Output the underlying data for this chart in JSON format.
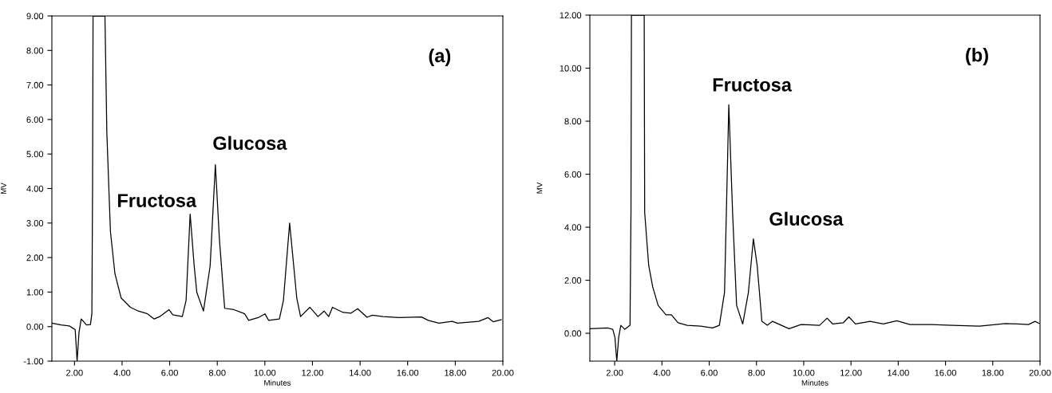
{
  "chart_data": [
    {
      "type": "line",
      "xlabel": "Minutes",
      "ylabel": "MV",
      "grid": false,
      "legend": false,
      "marker": "none",
      "line_style": "solid",
      "xlim": [
        1.05,
        20
      ],
      "ylim": [
        -1,
        9
      ],
      "xticks": [
        {
          "value": 2,
          "label": "2.00"
        },
        {
          "value": 4,
          "label": "4.00"
        },
        {
          "value": 6,
          "label": "6.00"
        },
        {
          "value": 8,
          "label": "8.00"
        },
        {
          "value": 10,
          "label": "10.00"
        },
        {
          "value": 12,
          "label": "12.00"
        },
        {
          "value": 14,
          "label": "14.00"
        },
        {
          "value": 16,
          "label": "16.00"
        },
        {
          "value": 18,
          "label": "18.00"
        },
        {
          "value": 20,
          "label": "20.00"
        }
      ],
      "yticks": [
        {
          "value": -1,
          "label": "-1.00"
        },
        {
          "value": 0,
          "label": "0.00"
        },
        {
          "value": 1,
          "label": "1.00"
        },
        {
          "value": 2,
          "label": "2.00"
        },
        {
          "value": 3,
          "label": "3.00"
        },
        {
          "value": 4,
          "label": "4.00"
        },
        {
          "value": 5,
          "label": "5.00"
        },
        {
          "value": 6,
          "label": "6.00"
        },
        {
          "value": 7,
          "label": "7.00"
        },
        {
          "value": 8,
          "label": "8.00"
        },
        {
          "value": 9,
          "label": "9.00"
        }
      ],
      "annotations": [
        "(a)",
        {
          "text": "Fructosa",
          "x": 6.86,
          "y": 3.26
        },
        {
          "text": "Glucosa",
          "x": 7.92,
          "y": 4.69
        }
      ],
      "series": [
        {
          "color": "#000000",
          "x": [
            1.05,
            1.44,
            1.78,
            1.94,
            2.03,
            2.11,
            2.19,
            2.28,
            2.39,
            2.5,
            2.67,
            2.73,
            2.76,
            2.78,
            3.28,
            3.36,
            3.51,
            3.7,
            3.96,
            4.35,
            4.68,
            5.07,
            5.35,
            5.58,
            5.97,
            6.13,
            6.53,
            6.69,
            6.86,
            7.03,
            7.14,
            7.42,
            7.7,
            7.92,
            8.09,
            8.31,
            8.7,
            9.15,
            9.32,
            9.72,
            10.0,
            10.16,
            10.61,
            10.78,
            11.04,
            11.34,
            11.5,
            11.89,
            12.23,
            12.49,
            12.68,
            12.84,
            13.29,
            13.62,
            13.9,
            14.29,
            14.52,
            14.96,
            15.64,
            16.58,
            16.86,
            17.31,
            17.87,
            18.09,
            18.98,
            19.38,
            19.6,
            19.93
          ],
          "values": [
            0.1,
            0.05,
            0.02,
            -0.05,
            -0.09,
            -1.0,
            -0.17,
            0.22,
            0.14,
            0.05,
            0.06,
            0.37,
            4.07,
            9.0,
            9.0,
            5.61,
            2.76,
            1.53,
            0.83,
            0.56,
            0.45,
            0.37,
            0.22,
            0.29,
            0.49,
            0.34,
            0.29,
            0.76,
            3.26,
            1.76,
            0.99,
            0.45,
            1.76,
            4.69,
            2.53,
            0.53,
            0.49,
            0.37,
            0.18,
            0.26,
            0.37,
            0.18,
            0.22,
            0.76,
            3.0,
            0.83,
            0.29,
            0.56,
            0.29,
            0.45,
            0.29,
            0.56,
            0.41,
            0.39,
            0.52,
            0.27,
            0.33,
            0.29,
            0.26,
            0.28,
            0.18,
            0.1,
            0.15,
            0.1,
            0.15,
            0.26,
            0.14,
            0.2
          ]
        }
      ]
    },
    {
      "type": "line",
      "xlabel": "Minutes",
      "ylabel": "MV",
      "grid": false,
      "legend": false,
      "marker": "none",
      "line_style": "solid",
      "xlim": [
        0.95,
        20
      ],
      "ylim": [
        -1.05,
        12
      ],
      "xticks": [
        {
          "value": 2,
          "label": "2.00"
        },
        {
          "value": 4,
          "label": "4.00"
        },
        {
          "value": 6,
          "label": "6.00"
        },
        {
          "value": 8,
          "label": "8.00"
        },
        {
          "value": 10,
          "label": "10.00"
        },
        {
          "value": 12,
          "label": "12.00"
        },
        {
          "value": 14,
          "label": "14.00"
        },
        {
          "value": 16,
          "label": "16.00"
        },
        {
          "value": 18,
          "label": "18.00"
        },
        {
          "value": 20,
          "label": "20.00"
        }
      ],
      "yticks": [
        {
          "value": 0,
          "label": "0.00"
        },
        {
          "value": 2,
          "label": "2.00"
        },
        {
          "value": 4,
          "label": "4.00"
        },
        {
          "value": 6,
          "label": "6.00"
        },
        {
          "value": 8,
          "label": "8.00"
        },
        {
          "value": 10,
          "label": "10.00"
        },
        {
          "value": 12,
          "label": "12.00"
        }
      ],
      "annotations": [
        "(b)",
        {
          "text": "Fructosa",
          "x": 6.83,
          "y": 8.62
        },
        {
          "text": "Glucosa",
          "x": 7.87,
          "y": 3.56
        }
      ],
      "series": [
        {
          "color": "#000000",
          "x": [
            0.95,
            1.7,
            1.92,
            2.01,
            2.09,
            2.17,
            2.26,
            2.43,
            2.65,
            2.69,
            2.71,
            3.25,
            3.27,
            3.44,
            3.61,
            3.84,
            4.17,
            4.4,
            4.68,
            5.07,
            5.64,
            6.14,
            6.43,
            6.65,
            6.83,
            6.99,
            7.16,
            7.42,
            7.66,
            7.87,
            8.03,
            8.23,
            8.46,
            8.68,
            9.38,
            9.88,
            10.67,
            10.99,
            11.23,
            11.68,
            11.91,
            12.19,
            12.81,
            13.37,
            13.94,
            14.5,
            15.4,
            16.3,
            17.43,
            18.55,
            19.51,
            19.79,
            19.96
          ],
          "values": [
            0.17,
            0.2,
            0.15,
            -0.15,
            -1.05,
            -0.15,
            0.3,
            0.15,
            0.3,
            4.56,
            12.0,
            12.0,
            4.56,
            2.56,
            1.75,
            1.05,
            0.7,
            0.7,
            0.4,
            0.3,
            0.27,
            0.2,
            0.3,
            1.55,
            8.62,
            4.56,
            1.05,
            0.35,
            1.55,
            3.56,
            2.56,
            0.45,
            0.3,
            0.45,
            0.17,
            0.33,
            0.3,
            0.57,
            0.35,
            0.4,
            0.62,
            0.35,
            0.45,
            0.35,
            0.47,
            0.33,
            0.33,
            0.3,
            0.27,
            0.37,
            0.33,
            0.45,
            0.37
          ]
        }
      ]
    }
  ]
}
